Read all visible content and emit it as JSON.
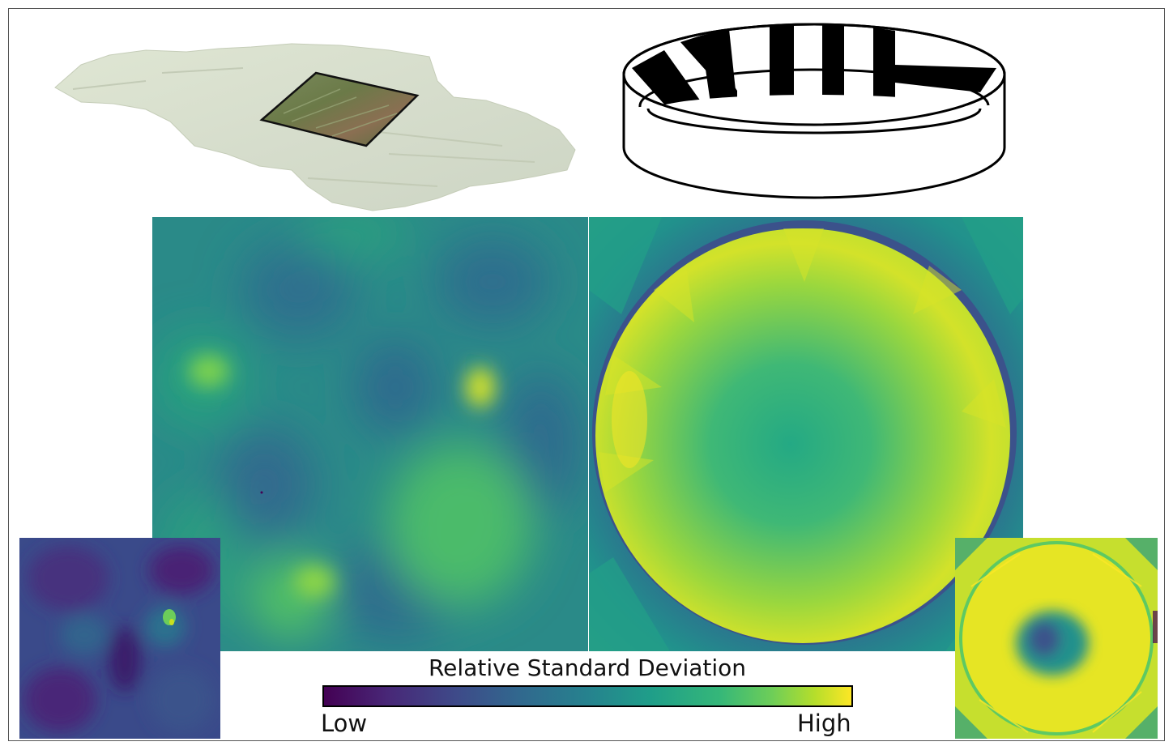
{
  "colorbar": {
    "title": "Relative Standard Deviation",
    "low_label": "Low",
    "high_label": "High",
    "colormap": [
      "#440154",
      "#3b528b",
      "#21918c",
      "#5ec962",
      "#fde725"
    ]
  },
  "colors": {
    "viridis_dark": "#440154",
    "viridis_blue": "#31688e",
    "viridis_teal": "#21918c",
    "viridis_green": "#5ec962",
    "viridis_yellow": "#fde725",
    "frame": "#555555"
  }
}
